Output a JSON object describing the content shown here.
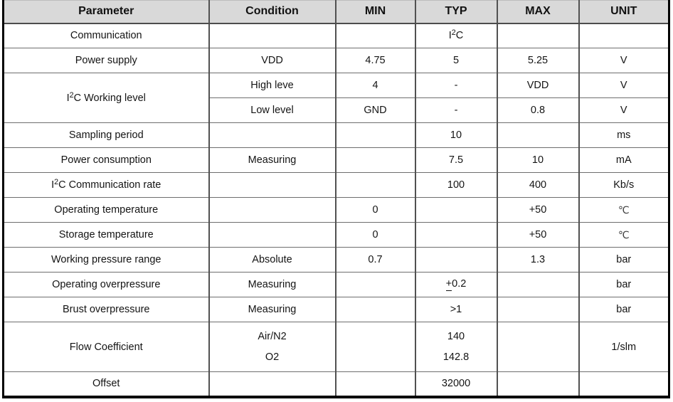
{
  "colors": {
    "header_bg": "#d9d9d9",
    "outer_border": "#000000",
    "grid_vertical": "#515151",
    "grid_horizontal": "#6e6e6e"
  },
  "table": {
    "columns": [
      {
        "key": "parameter",
        "label": "Parameter"
      },
      {
        "key": "condition",
        "label": "Condition"
      },
      {
        "key": "min",
        "label": "MIN"
      },
      {
        "key": "typ",
        "label": "TYP"
      },
      {
        "key": "max",
        "label": "MAX"
      },
      {
        "key": "unit",
        "label": "UNIT"
      }
    ],
    "rows": [
      {
        "cells": [
          {
            "t": "Communication"
          },
          {
            "t": ""
          },
          {
            "t": ""
          },
          {
            "t": "I²C"
          },
          {
            "t": ""
          },
          {
            "t": ""
          }
        ]
      },
      {
        "cells": [
          {
            "t": "Power supply"
          },
          {
            "t": "VDD"
          },
          {
            "t": "4.75"
          },
          {
            "t": "5"
          },
          {
            "t": "5.25"
          },
          {
            "t": "V"
          }
        ]
      },
      {
        "cells": [
          {
            "t": "I²C Working level",
            "rowspan": 2
          },
          {
            "t": "High leve"
          },
          {
            "t": "4"
          },
          {
            "t": "-"
          },
          {
            "t": "VDD"
          },
          {
            "t": "V"
          }
        ]
      },
      {
        "cells": [
          {
            "t": "Low level"
          },
          {
            "t": "GND"
          },
          {
            "t": "-"
          },
          {
            "t": "0.8"
          },
          {
            "t": "V"
          }
        ]
      },
      {
        "cells": [
          {
            "t": "Sampling period"
          },
          {
            "t": ""
          },
          {
            "t": ""
          },
          {
            "t": "10"
          },
          {
            "t": ""
          },
          {
            "t": "ms"
          }
        ]
      },
      {
        "cells": [
          {
            "t": "Power consumption"
          },
          {
            "t": "Measuring"
          },
          {
            "t": ""
          },
          {
            "t": "7.5"
          },
          {
            "t": "10"
          },
          {
            "t": "mA"
          }
        ]
      },
      {
        "cells": [
          {
            "t": "I²C Communication rate"
          },
          {
            "t": ""
          },
          {
            "t": ""
          },
          {
            "t": "100"
          },
          {
            "t": "400"
          },
          {
            "t": "Kb/s"
          }
        ]
      },
      {
        "cells": [
          {
            "t": "Operating temperature"
          },
          {
            "t": ""
          },
          {
            "t": "0"
          },
          {
            "t": ""
          },
          {
            "t": "+50"
          },
          {
            "t": "℃"
          }
        ]
      },
      {
        "cells": [
          {
            "t": "Storage temperature"
          },
          {
            "t": ""
          },
          {
            "t": "0"
          },
          {
            "t": ""
          },
          {
            "t": "+50"
          },
          {
            "t": "℃"
          }
        ]
      },
      {
        "cells": [
          {
            "t": "Working pressure range"
          },
          {
            "t": "Absolute"
          },
          {
            "t": "0.7"
          },
          {
            "t": ""
          },
          {
            "t": "1.3"
          },
          {
            "t": "bar"
          }
        ]
      },
      {
        "cells": [
          {
            "t": "Operating overpressure"
          },
          {
            "t": "Measuring"
          },
          {
            "t": ""
          },
          {
            "t": "±0.2"
          },
          {
            "t": ""
          },
          {
            "t": "bar"
          }
        ]
      },
      {
        "cells": [
          {
            "t": "Brust overpressure"
          },
          {
            "t": "Measuring"
          },
          {
            "t": ""
          },
          {
            "t": ">1"
          },
          {
            "t": ""
          },
          {
            "t": "bar"
          }
        ]
      },
      {
        "tall": true,
        "cells": [
          {
            "t": "Flow Coefficient"
          },
          {
            "lines": [
              "Air/N2",
              "O2"
            ]
          },
          {
            "t": ""
          },
          {
            "lines": [
              "140",
              "142.8"
            ]
          },
          {
            "t": ""
          },
          {
            "t": "1/slm"
          }
        ]
      },
      {
        "cells": [
          {
            "t": "Offset"
          },
          {
            "t": ""
          },
          {
            "t": ""
          },
          {
            "t": "32000"
          },
          {
            "t": ""
          },
          {
            "t": ""
          }
        ]
      }
    ]
  }
}
